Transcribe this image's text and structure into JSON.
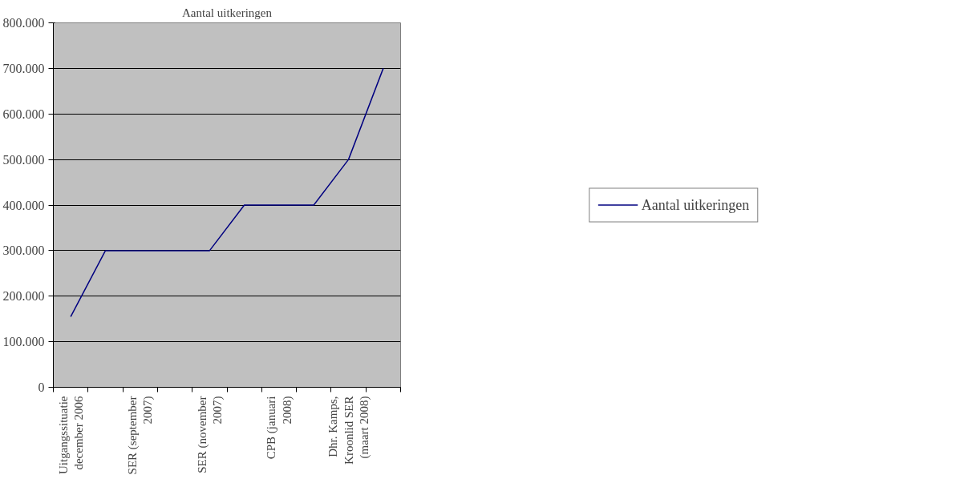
{
  "chart_data": {
    "type": "line",
    "title": "Aantal uitkeringen",
    "categories": [
      "Uitgangssituatie december 2006",
      null,
      "SER (september 2007)",
      null,
      "SER (november 2007)",
      null,
      "CPB (januari 2008)",
      null,
      "Dhr. Kamps, Kroonlid SER (maart 2008)",
      null
    ],
    "series": [
      {
        "name": "Aantal uitkeringen",
        "color": "#000080",
        "values": [
          155000,
          300000,
          300000,
          300000,
          300000,
          400000,
          400000,
          400000,
          500000,
          700000
        ]
      }
    ],
    "ylim": [
      0,
      800000
    ],
    "yticks": [
      {
        "value": 0,
        "label": "0"
      },
      {
        "value": 100000,
        "label": "100.000"
      },
      {
        "value": 200000,
        "label": "200.000"
      },
      {
        "value": 300000,
        "label": "300.000"
      },
      {
        "value": 400000,
        "label": "400.000"
      },
      {
        "value": 500000,
        "label": "500.000"
      },
      {
        "value": 600000,
        "label": "600.000"
      },
      {
        "value": 700000,
        "label": "700.000"
      },
      {
        "value": 800000,
        "label": "800.000"
      }
    ],
    "grid": "y",
    "legend": "right",
    "marker": "none",
    "line_style": "solid"
  }
}
